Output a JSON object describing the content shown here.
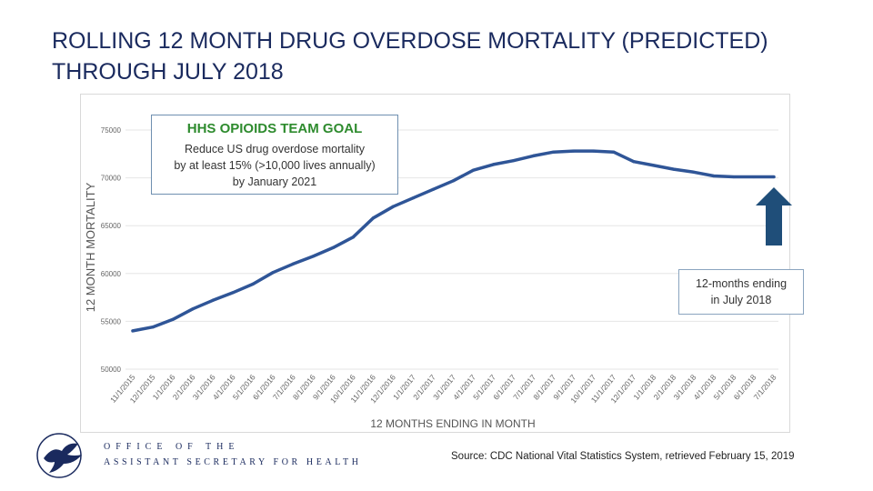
{
  "title": "ROLLING 12 MONTH DRUG OVERDOSE MORTALITY (PREDICTED) THROUGH JULY 2018",
  "goal_box": {
    "title": "HHS OPIOIDS TEAM GOAL",
    "line1": "Reduce US drug overdose mortality",
    "line2": "by at least 15% (>10,000 lives annually)",
    "line3": "by January 2021"
  },
  "callout": {
    "line1": "12-months ending",
    "line2": "in July 2018"
  },
  "footer": {
    "office_line1": "OFFICE OF THE",
    "office_line2": "ASSISTANT SECRETARY FOR HEALTH",
    "source": "Source: CDC National Vital Statistics System, retrieved February 15, 2019"
  },
  "colors": {
    "line": "#2f5597",
    "arrow": "#1f4e79",
    "goal_title": "#2e8b2e",
    "title": "#1a2a5e"
  },
  "chart_data": {
    "type": "line",
    "title": "",
    "xlabel": "12 MONTHS ENDING IN MONTH",
    "ylabel": "12 MONTH MORTALITY",
    "ylim": [
      50000,
      75000
    ],
    "yticks": [
      50000,
      55000,
      60000,
      65000,
      70000,
      75000
    ],
    "ytick_labels": [
      "50000",
      "55000",
      "60000",
      "65000",
      "70000",
      "75000"
    ],
    "categories": [
      "11/1/2015",
      "12/1/2015",
      "1/1/2016",
      "2/1/2016",
      "3/1/2016",
      "4/1/2016",
      "5/1/2016",
      "6/1/2016",
      "7/1/2016",
      "8/1/2016",
      "9/1/2016",
      "10/1/2016",
      "11/1/2016",
      "12/1/2016",
      "1/1/2017",
      "2/1/2017",
      "3/1/2017",
      "4/1/2017",
      "5/1/2017",
      "6/1/2017",
      "7/1/2017",
      "8/1/2017",
      "9/1/2017",
      "10/1/2017",
      "11/1/2017",
      "12/1/2017",
      "1/1/2018",
      "2/1/2018",
      "3/1/2018",
      "4/1/2018",
      "5/1/2018",
      "6/1/2018",
      "7/1/2018"
    ],
    "series": [
      {
        "name": "12 month mortality",
        "values": [
          54000,
          54400,
          55200,
          56300,
          57200,
          58000,
          58900,
          60100,
          61000,
          61800,
          62700,
          63800,
          65800,
          67000,
          67900,
          68800,
          69700,
          70800,
          71400,
          71800,
          72300,
          72700,
          72800,
          72800,
          72700,
          71700,
          71300,
          70900,
          70600,
          70200,
          70100,
          70100,
          70100
        ]
      }
    ],
    "grid": true,
    "annotations": [
      "HHS OPIOIDS TEAM GOAL",
      "12-months ending in July 2018"
    ]
  }
}
